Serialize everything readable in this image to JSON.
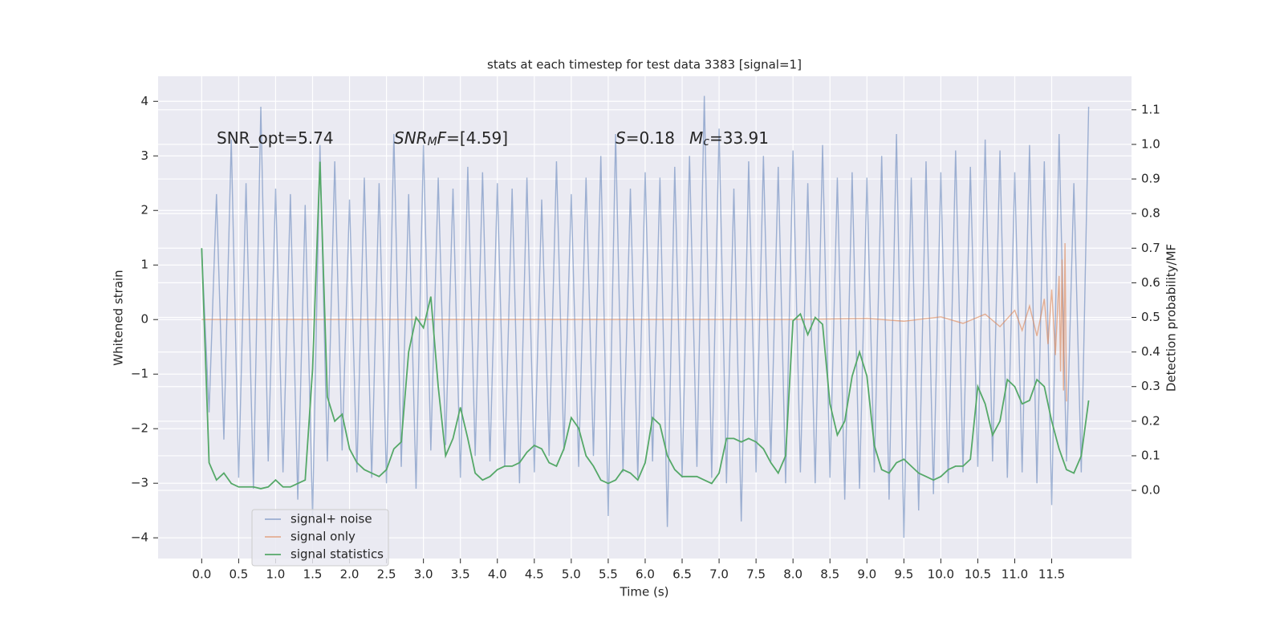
{
  "chart_data": {
    "type": "line",
    "title": "stats at each timestep for test data 3383 [signal=1]",
    "xlabel": "Time (s)",
    "ylabel": "Whitened strain",
    "y2label": "Detection probability/MF",
    "xlim": [
      -0.59,
      12.58
    ],
    "ylim": [
      -4.38,
      4.46
    ],
    "y2lim": [
      -0.197,
      1.197
    ],
    "xticks": [
      {
        "value": 0,
        "label": "0.0"
      },
      0.5,
      {
        "value": 1,
        "label": "1.0"
      },
      1.5,
      {
        "value": 2,
        "label": "2.0"
      },
      2.5,
      {
        "value": 3,
        "label": "3.0"
      },
      3.5,
      {
        "value": 4,
        "label": "4.0"
      },
      4.5,
      {
        "value": 5,
        "label": "5.0"
      },
      5.5,
      {
        "value": 6,
        "label": "6.0"
      },
      6.5,
      {
        "value": 7,
        "label": "7.0"
      },
      7.5,
      {
        "value": 8,
        "label": "8.0"
      },
      8.5,
      {
        "value": 9,
        "label": "9.0"
      },
      9.5,
      {
        "value": 10,
        "label": "10.0"
      },
      10.5,
      {
        "value": 11,
        "label": "11.0"
      },
      11.5
    ],
    "yticks": [
      {
        "value": -4,
        "label": "−4"
      },
      {
        "value": -3,
        "label": "−3"
      },
      {
        "value": -2,
        "label": "−2"
      },
      {
        "value": -1,
        "label": "−1"
      },
      0,
      1,
      2,
      3,
      4
    ],
    "y2ticks": [
      {
        "value": 0,
        "label": "0.0"
      },
      0.1,
      0.2,
      0.3,
      0.4,
      0.5,
      0.6,
      0.7,
      0.8,
      0.9,
      {
        "value": 1,
        "label": "1.0"
      },
      1.1
    ],
    "grid": true,
    "legend": "lower left",
    "series": [
      {
        "name": "signal+ noise",
        "color": "#4c72b0",
        "opacity": 0.5,
        "x": [
          0,
          0.1,
          0.2,
          0.3,
          0.4,
          0.5,
          0.6,
          0.7,
          0.8,
          0.9,
          1,
          1.1,
          1.2,
          1.3,
          1.4,
          1.5,
          1.6,
          1.7,
          1.8,
          1.9,
          2,
          2.1,
          2.2,
          2.3,
          2.4,
          2.5,
          2.6,
          2.7,
          2.8,
          2.9,
          3,
          3.1,
          3.2,
          3.3,
          3.4,
          3.5,
          3.6,
          3.7,
          3.8,
          3.9,
          4,
          4.1,
          4.2,
          4.3,
          4.4,
          4.5,
          4.6,
          4.7,
          4.8,
          4.9,
          5,
          5.1,
          5.2,
          5.3,
          5.4,
          5.5,
          5.6,
          5.7,
          5.8,
          5.9,
          6,
          6.1,
          6.2,
          6.3,
          6.4,
          6.5,
          6.6,
          6.7,
          6.8,
          6.9,
          7,
          7.1,
          7.2,
          7.3,
          7.4,
          7.5,
          7.6,
          7.7,
          7.8,
          7.9,
          8,
          8.1,
          8.2,
          8.3,
          8.4,
          8.5,
          8.6,
          8.7,
          8.8,
          8.9,
          9,
          9.1,
          9.2,
          9.3,
          9.4,
          9.5,
          9.6,
          9.7,
          9.8,
          9.9,
          10,
          10.1,
          10.2,
          10.3,
          10.4,
          10.5,
          10.6,
          10.7,
          10.8,
          10.9,
          11,
          11.1,
          11.2,
          11.3,
          11.4,
          11.5,
          11.6,
          11.7,
          11.8,
          11.9,
          12
        ],
        "values": [
          1.3,
          -1.7,
          2.3,
          -2.2,
          3.3,
          -2.9,
          2.5,
          -3.1,
          3.9,
          -2.6,
          2.4,
          -2.8,
          2.3,
          -3.3,
          2.1,
          -3.6,
          3.2,
          -2.6,
          2.9,
          -2.4,
          2.2,
          -2.8,
          2.6,
          -2.9,
          2.5,
          -3.0,
          3.4,
          -2.7,
          2.3,
          -3.1,
          3.2,
          -2.4,
          2.6,
          -2.3,
          2.4,
          -2.9,
          2.8,
          -2.5,
          2.7,
          -2.6,
          2.5,
          -2.7,
          2.4,
          -3.0,
          2.6,
          -2.8,
          2.2,
          -2.5,
          2.9,
          -2.4,
          2.3,
          -2.7,
          2.6,
          -2.5,
          3.0,
          -3.6,
          3.4,
          -2.8,
          2.4,
          -2.9,
          2.7,
          -2.6,
          2.6,
          -3.8,
          2.8,
          -2.9,
          3.0,
          -2.7,
          4.1,
          -2.9,
          3.5,
          -3.0,
          2.4,
          -3.7,
          2.9,
          -2.8,
          3.0,
          -2.6,
          2.8,
          -3.0,
          3.1,
          -2.8,
          2.5,
          -3.0,
          3.2,
          -2.9,
          2.6,
          -3.3,
          2.7,
          -3.1,
          2.6,
          -2.8,
          3.0,
          -3.3,
          3.4,
          -4.0,
          2.6,
          -3.5,
          2.9,
          -3.2,
          2.7,
          -3.0,
          3.1,
          -2.8,
          2.8,
          -2.7,
          3.3,
          -2.6,
          3.1,
          -2.9,
          2.7,
          -2.8,
          3.2,
          -3.0,
          2.9,
          -3.4,
          3.4,
          -2.6,
          2.5,
          -2.8,
          3.9
        ]
      },
      {
        "name": "signal only",
        "color": "#dd8452",
        "opacity": 0.6,
        "x": [
          0,
          8,
          9,
          9.5,
          10,
          10.3,
          10.6,
          10.8,
          11,
          11.1,
          11.2,
          11.3,
          11.4,
          11.45,
          11.5,
          11.55,
          11.6,
          11.62,
          11.64,
          11.66,
          11.68,
          11.7
        ],
        "values": [
          0,
          0,
          0.02,
          -0.03,
          0.05,
          -0.07,
          0.1,
          -0.13,
          0.17,
          -0.2,
          0.25,
          -0.3,
          0.38,
          -0.45,
          0.55,
          -0.65,
          0.8,
          -0.95,
          1.1,
          -1.3,
          1.4,
          -1.5
        ]
      },
      {
        "name": "signal statistics",
        "color": "#55a868",
        "opacity": 1,
        "axis": "y2",
        "x": [
          0,
          0.1,
          0.2,
          0.3,
          0.4,
          0.5,
          0.6,
          0.7,
          0.8,
          0.9,
          1,
          1.1,
          1.2,
          1.3,
          1.4,
          1.5,
          1.6,
          1.7,
          1.8,
          1.9,
          2,
          2.1,
          2.2,
          2.3,
          2.4,
          2.5,
          2.6,
          2.7,
          2.8,
          2.9,
          3,
          3.1,
          3.2,
          3.3,
          3.4,
          3.5,
          3.6,
          3.7,
          3.8,
          3.9,
          4,
          4.1,
          4.2,
          4.3,
          4.4,
          4.5,
          4.6,
          4.7,
          4.8,
          4.9,
          5,
          5.1,
          5.2,
          5.3,
          5.4,
          5.5,
          5.6,
          5.7,
          5.8,
          5.9,
          6,
          6.1,
          6.2,
          6.3,
          6.4,
          6.5,
          6.6,
          6.7,
          6.8,
          6.9,
          7,
          7.1,
          7.2,
          7.3,
          7.4,
          7.5,
          7.6,
          7.7,
          7.8,
          7.9,
          8,
          8.1,
          8.2,
          8.3,
          8.4,
          8.5,
          8.6,
          8.7,
          8.8,
          8.9,
          9,
          9.1,
          9.2,
          9.3,
          9.4,
          9.5,
          9.6,
          9.7,
          9.8,
          9.9,
          10,
          10.1,
          10.2,
          10.3,
          10.4,
          10.5,
          10.6,
          10.7,
          10.8,
          10.9,
          11,
          11.1,
          11.2,
          11.3,
          11.4,
          11.5,
          11.6,
          11.7,
          11.8,
          11.9,
          12
        ],
        "values": [
          0.7,
          0.08,
          0.03,
          0.05,
          0.02,
          0.01,
          0.01,
          0.01,
          0.005,
          0.01,
          0.03,
          0.01,
          0.01,
          0.02,
          0.03,
          0.35,
          0.95,
          0.27,
          0.2,
          0.22,
          0.12,
          0.08,
          0.06,
          0.05,
          0.04,
          0.06,
          0.12,
          0.14,
          0.4,
          0.5,
          0.47,
          0.56,
          0.3,
          0.1,
          0.15,
          0.24,
          0.15,
          0.05,
          0.03,
          0.04,
          0.06,
          0.07,
          0.07,
          0.08,
          0.11,
          0.13,
          0.12,
          0.08,
          0.07,
          0.12,
          0.21,
          0.18,
          0.1,
          0.07,
          0.03,
          0.02,
          0.03,
          0.06,
          0.05,
          0.03,
          0.08,
          0.21,
          0.19,
          0.1,
          0.06,
          0.04,
          0.04,
          0.04,
          0.03,
          0.02,
          0.05,
          0.15,
          0.15,
          0.14,
          0.15,
          0.14,
          0.12,
          0.08,
          0.05,
          0.1,
          0.49,
          0.51,
          0.45,
          0.5,
          0.48,
          0.25,
          0.16,
          0.2,
          0.33,
          0.4,
          0.33,
          0.13,
          0.06,
          0.05,
          0.08,
          0.09,
          0.07,
          0.05,
          0.04,
          0.03,
          0.04,
          0.06,
          0.07,
          0.07,
          0.09,
          0.3,
          0.25,
          0.16,
          0.2,
          0.32,
          0.3,
          0.25,
          0.26,
          0.32,
          0.3,
          0.2,
          0.12,
          0.06,
          0.05,
          0.1,
          0.26
        ]
      }
    ],
    "annotations": [
      {
        "parts": [
          {
            "text": "SNR_opt=5.74"
          }
        ]
      },
      {
        "parts": [
          {
            "text": "SNR",
            "italic": true
          },
          {
            "text": "M",
            "italic": true,
            "sub": true
          },
          {
            "text": "F",
            "italic": true
          },
          {
            "text": "=[4.59]"
          }
        ]
      },
      {
        "parts": [
          {
            "text": "S",
            "italic": true
          },
          {
            "text": "=0.18"
          }
        ]
      },
      {
        "parts": [
          {
            "text": "M",
            "italic": true
          },
          {
            "text": "c",
            "italic": true,
            "sub": true
          },
          {
            "text": "=33.91"
          }
        ]
      }
    ]
  }
}
